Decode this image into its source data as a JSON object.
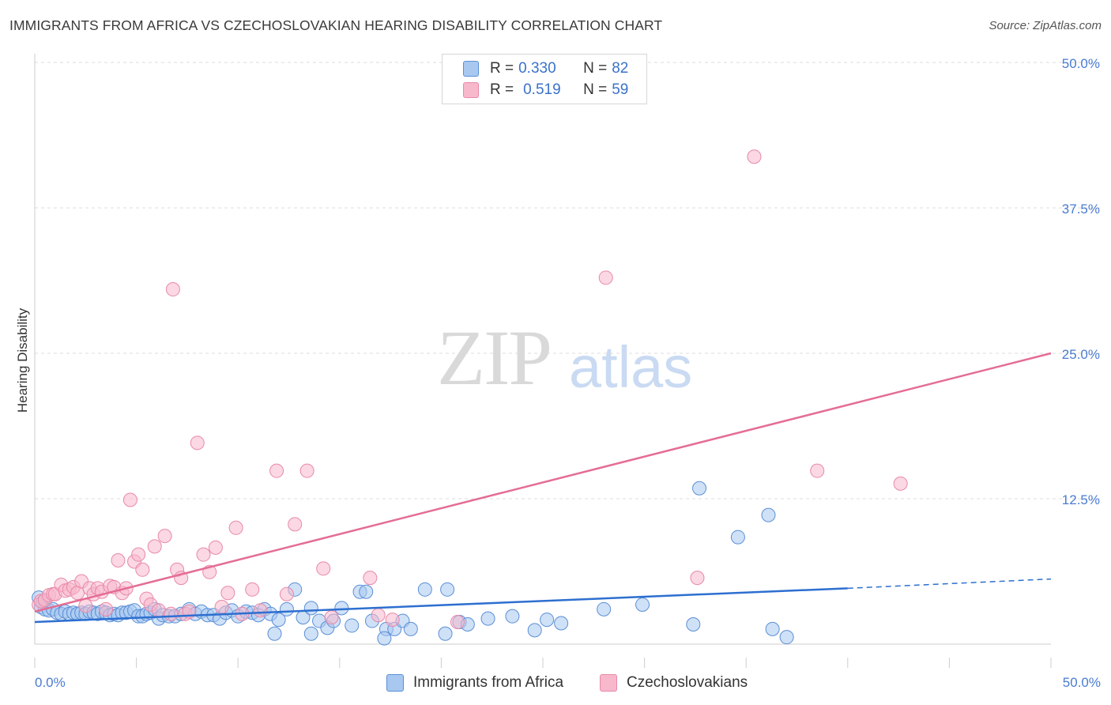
{
  "header": {
    "title": "IMMIGRANTS FROM AFRICA VS CZECHOSLOVAKIAN HEARING DISABILITY CORRELATION CHART",
    "source": "Source: ZipAtlas.com"
  },
  "watermark": {
    "zip": "ZIP",
    "atlas": "atlas"
  },
  "legend": {
    "rows": [
      {
        "r_label": "R =",
        "r_value": "0.330",
        "n_label": "N =",
        "n_value": "82",
        "color": "#a8c8f0"
      },
      {
        "r_label": "R =",
        "r_value": "0.519",
        "n_label": "N =",
        "n_value": "59",
        "color": "#f8b8cc"
      }
    ]
  },
  "colors": {
    "blue_fill": "#a8c8f0",
    "blue_stroke": "#5b8fd6",
    "blue_line": "#2d6fd0",
    "pink_fill": "#f8b8cc",
    "pink_stroke": "#e889a8",
    "pink_line": "#e46d94",
    "grid": "#dcdcdc",
    "tick_blue": "#4a7bd0"
  },
  "chart_data": {
    "type": "scatter",
    "title": "IMMIGRANTS FROM AFRICA VS CZECHOSLOVAKIAN HEARING DISABILITY CORRELATION CHART",
    "xlabel": "",
    "ylabel": "Hearing Disability",
    "xlim": [
      0,
      50
    ],
    "ylim": [
      0,
      51
    ],
    "x_tick_labels": [
      "0.0%",
      "50.0%"
    ],
    "y_ticks": [
      12.5,
      25.0,
      37.5,
      50.0
    ],
    "y_tick_labels": [
      "12.5%",
      "25.0%",
      "37.5%",
      "50.0%"
    ],
    "grid": true,
    "legend_position": "top-center",
    "series": [
      {
        "name": "Immigrants from Africa",
        "color": "#a8c8f0",
        "points": [
          [
            0.2,
            4.0
          ],
          [
            0.3,
            3.2
          ],
          [
            0.4,
            3.6
          ],
          [
            0.5,
            3.0
          ],
          [
            0.7,
            2.9
          ],
          [
            0.9,
            3.0
          ],
          [
            1.1,
            2.7
          ],
          [
            1.3,
            2.6
          ],
          [
            1.5,
            2.8
          ],
          [
            1.7,
            2.6
          ],
          [
            1.9,
            2.7
          ],
          [
            2.1,
            2.6
          ],
          [
            2.3,
            2.7
          ],
          [
            2.5,
            2.6
          ],
          [
            2.7,
            2.8
          ],
          [
            2.9,
            2.7
          ],
          [
            3.1,
            2.6
          ],
          [
            3.3,
            2.8
          ],
          [
            3.5,
            2.7
          ],
          [
            3.7,
            2.5
          ],
          [
            3.9,
            2.6
          ],
          [
            4.1,
            2.5
          ],
          [
            4.3,
            2.7
          ],
          [
            4.5,
            2.7
          ],
          [
            4.7,
            2.8
          ],
          [
            4.9,
            2.9
          ],
          [
            5.1,
            2.4
          ],
          [
            5.3,
            2.4
          ],
          [
            5.5,
            2.6
          ],
          [
            5.7,
            2.7
          ],
          [
            5.9,
            3.0
          ],
          [
            6.1,
            2.2
          ],
          [
            6.3,
            2.5
          ],
          [
            6.6,
            2.4
          ],
          [
            6.9,
            2.4
          ],
          [
            7.2,
            2.6
          ],
          [
            7.6,
            3.0
          ],
          [
            7.9,
            2.6
          ],
          [
            8.2,
            2.8
          ],
          [
            8.5,
            2.5
          ],
          [
            8.8,
            2.5
          ],
          [
            9.1,
            2.2
          ],
          [
            9.4,
            2.7
          ],
          [
            9.7,
            2.9
          ],
          [
            10.0,
            2.4
          ],
          [
            10.4,
            2.8
          ],
          [
            10.7,
            2.7
          ],
          [
            11.0,
            2.5
          ],
          [
            11.3,
            3.0
          ],
          [
            11.6,
            2.6
          ],
          [
            12.0,
            2.1
          ],
          [
            12.4,
            3.0
          ],
          [
            12.8,
            4.7
          ],
          [
            13.2,
            2.3
          ],
          [
            13.6,
            3.1
          ],
          [
            14.0,
            2.0
          ],
          [
            14.4,
            1.4
          ],
          [
            14.7,
            2.0
          ],
          [
            15.1,
            3.1
          ],
          [
            15.6,
            1.6
          ],
          [
            16.0,
            4.5
          ],
          [
            16.3,
            4.5
          ],
          [
            16.6,
            2.0
          ],
          [
            17.3,
            1.3
          ],
          [
            17.7,
            1.3
          ],
          [
            18.1,
            2.0
          ],
          [
            18.5,
            1.3
          ],
          [
            19.2,
            4.7
          ],
          [
            20.3,
            4.7
          ],
          [
            20.9,
            1.9
          ],
          [
            21.3,
            1.7
          ],
          [
            22.3,
            2.2
          ],
          [
            23.5,
            2.4
          ],
          [
            24.6,
            1.2
          ],
          [
            25.2,
            2.1
          ],
          [
            25.9,
            1.8
          ],
          [
            28.0,
            3.0
          ],
          [
            29.9,
            3.4
          ],
          [
            32.4,
            1.7
          ],
          [
            32.7,
            13.4
          ],
          [
            34.6,
            9.2
          ],
          [
            36.1,
            11.1
          ],
          [
            36.3,
            1.3
          ],
          [
            37.0,
            0.6
          ],
          [
            20.2,
            0.9
          ],
          [
            13.6,
            0.9
          ],
          [
            11.8,
            0.9
          ],
          [
            17.2,
            0.5
          ]
        ]
      },
      {
        "name": "Czechoslovakians",
        "color": "#f8b8cc",
        "points": [
          [
            0.2,
            3.4
          ],
          [
            0.3,
            3.7
          ],
          [
            0.5,
            3.8
          ],
          [
            0.7,
            4.2
          ],
          [
            0.9,
            4.3
          ],
          [
            1.0,
            4.3
          ],
          [
            1.3,
            5.1
          ],
          [
            1.5,
            4.6
          ],
          [
            1.7,
            4.7
          ],
          [
            1.9,
            4.9
          ],
          [
            2.1,
            4.4
          ],
          [
            2.3,
            5.4
          ],
          [
            2.5,
            3.3
          ],
          [
            2.7,
            4.8
          ],
          [
            2.9,
            4.3
          ],
          [
            3.1,
            4.8
          ],
          [
            3.3,
            4.5
          ],
          [
            3.5,
            3.0
          ],
          [
            3.7,
            5.0
          ],
          [
            3.9,
            4.9
          ],
          [
            4.1,
            7.2
          ],
          [
            4.3,
            4.4
          ],
          [
            4.5,
            4.8
          ],
          [
            4.7,
            12.4
          ],
          [
            4.9,
            7.1
          ],
          [
            5.1,
            7.7
          ],
          [
            5.3,
            6.4
          ],
          [
            5.5,
            3.9
          ],
          [
            5.7,
            3.4
          ],
          [
            5.9,
            8.4
          ],
          [
            6.1,
            2.9
          ],
          [
            6.4,
            9.3
          ],
          [
            6.7,
            2.6
          ],
          [
            7.0,
            6.4
          ],
          [
            7.2,
            5.7
          ],
          [
            7.4,
            2.6
          ],
          [
            7.6,
            2.8
          ],
          [
            8.0,
            17.3
          ],
          [
            8.3,
            7.7
          ],
          [
            8.6,
            6.2
          ],
          [
            8.9,
            8.3
          ],
          [
            9.2,
            3.2
          ],
          [
            9.5,
            4.4
          ],
          [
            9.9,
            10.0
          ],
          [
            10.2,
            2.6
          ],
          [
            10.7,
            4.7
          ],
          [
            11.1,
            2.9
          ],
          [
            11.9,
            14.9
          ],
          [
            12.4,
            4.3
          ],
          [
            12.8,
            10.3
          ],
          [
            13.4,
            14.9
          ],
          [
            14.2,
            6.5
          ],
          [
            14.6,
            2.3
          ],
          [
            16.5,
            5.7
          ],
          [
            16.9,
            2.5
          ],
          [
            17.6,
            2.1
          ],
          [
            20.8,
            1.9
          ],
          [
            28.1,
            31.5
          ],
          [
            32.6,
            5.7
          ],
          [
            35.4,
            41.9
          ],
          [
            38.5,
            14.9
          ],
          [
            42.6,
            13.8
          ],
          [
            6.8,
            30.5
          ]
        ]
      }
    ],
    "trend_lines": [
      {
        "series": "Immigrants from Africa",
        "x": [
          0,
          40,
          50
        ],
        "y": [
          1.9,
          4.8,
          5.6
        ],
        "dashed_from_x": 40
      },
      {
        "series": "Czechoslovakians",
        "x": [
          0,
          50
        ],
        "y": [
          2.8,
          25.0
        ]
      }
    ]
  },
  "bottom_legend": {
    "items": [
      {
        "label": "Immigrants from Africa",
        "color": "#a8c8f0"
      },
      {
        "label": "Czechoslovakians",
        "color": "#f8b8cc"
      }
    ]
  }
}
